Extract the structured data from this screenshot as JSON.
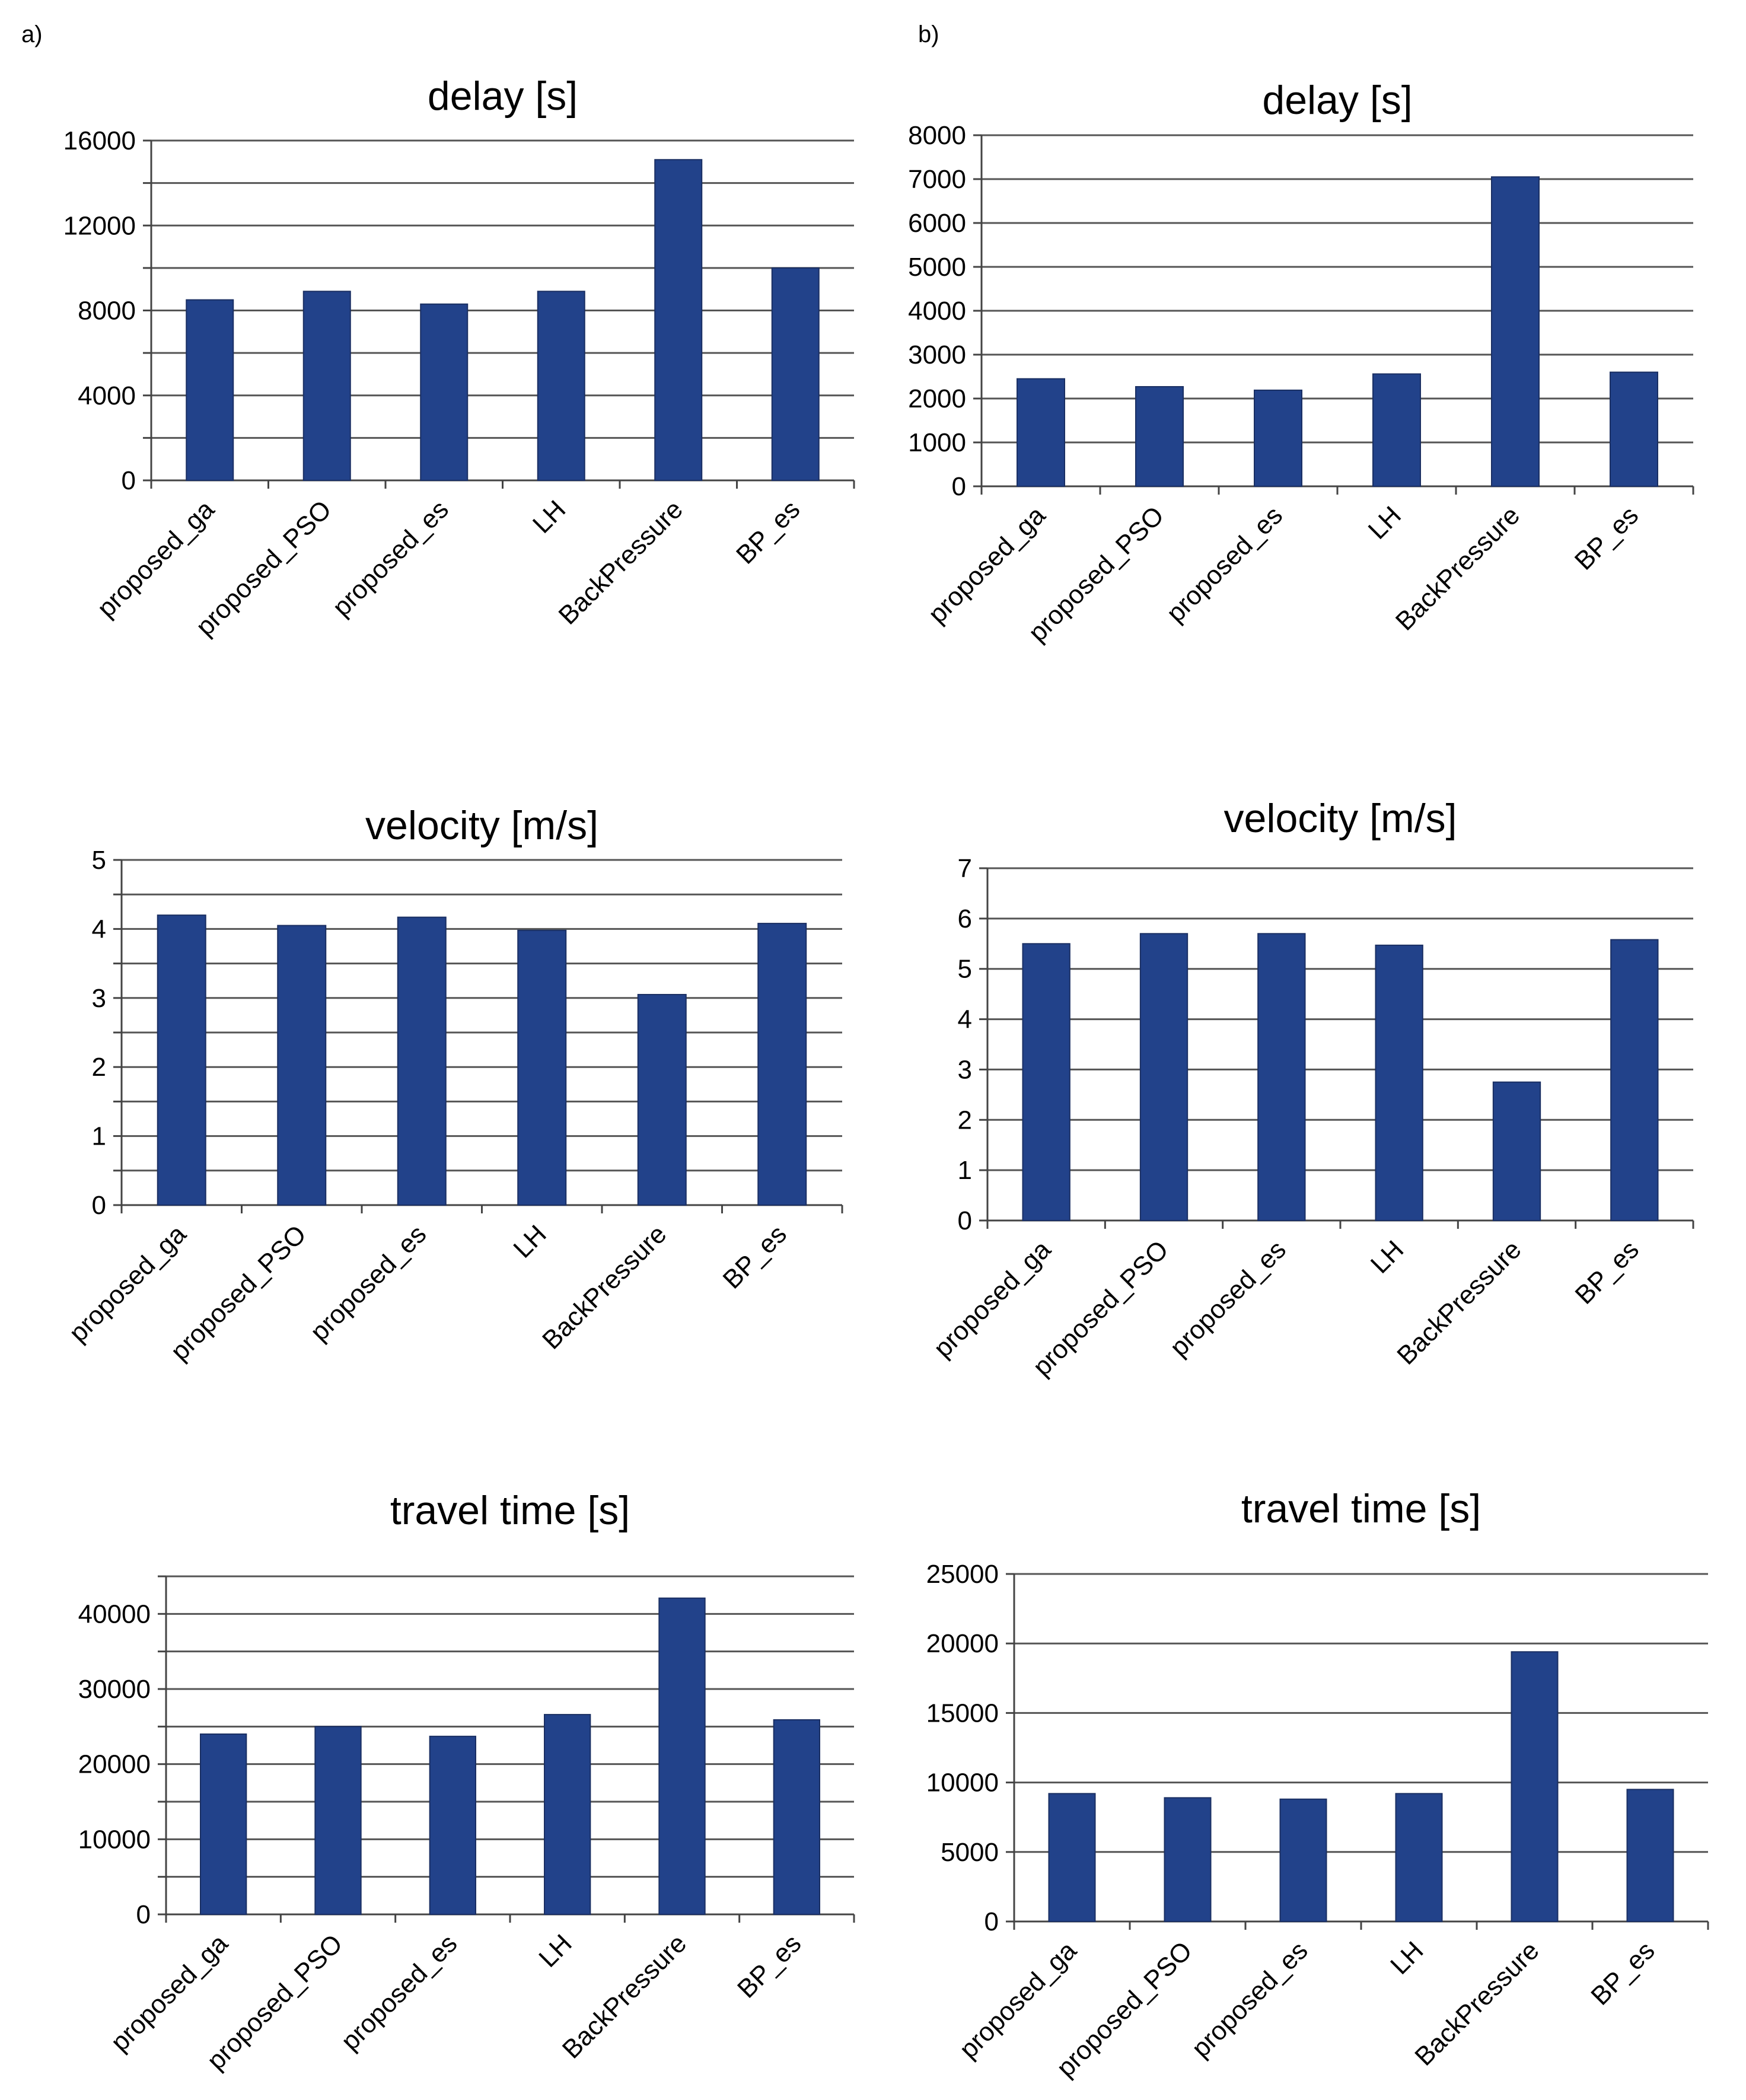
{
  "panels": {
    "a": "a)",
    "b": "b)"
  },
  "colors": {
    "bar": "#22428a",
    "grid": "#555555",
    "axis": "#444444"
  },
  "chart_data": [
    {
      "id": "a-delay",
      "panel": "a",
      "type": "bar",
      "title": "delay [s]",
      "categories": [
        "proposed_ga",
        "proposed_PSO",
        "proposed_es",
        "LH",
        "BackPressure",
        "BP_es"
      ],
      "values": [
        8500,
        8900,
        8300,
        8900,
        15100,
        10000
      ],
      "ylim": [
        0,
        16000
      ],
      "yticks": [
        0,
        4000,
        8000,
        12000,
        16000
      ],
      "ygrid_step": 2000,
      "xlabel": "",
      "ylabel": ""
    },
    {
      "id": "b-delay",
      "panel": "b",
      "type": "bar",
      "title": "delay [s]",
      "categories": [
        "proposed_ga",
        "proposed_PSO",
        "proposed_es",
        "LH",
        "BackPressure",
        "BP_es"
      ],
      "values": [
        2450,
        2270,
        2190,
        2560,
        7050,
        2600
      ],
      "ylim": [
        0,
        8000
      ],
      "yticks": [
        0,
        1000,
        2000,
        3000,
        4000,
        5000,
        6000,
        7000,
        8000
      ],
      "ygrid_step": 1000,
      "xlabel": "",
      "ylabel": ""
    },
    {
      "id": "a-velocity",
      "panel": "a",
      "type": "bar",
      "title": "velocity [m/s]",
      "categories": [
        "proposed_ga",
        "proposed_PSO",
        "proposed_es",
        "LH",
        "BackPressure",
        "BP_es"
      ],
      "values": [
        4.2,
        4.05,
        4.17,
        3.98,
        3.05,
        4.08
      ],
      "ylim": [
        0,
        5
      ],
      "yticks": [
        0,
        1,
        2,
        3,
        4,
        5
      ],
      "ygrid_step": 0.5,
      "xlabel": "",
      "ylabel": ""
    },
    {
      "id": "b-velocity",
      "panel": "b",
      "type": "bar",
      "title": "velocity [m/s]",
      "categories": [
        "proposed_ga",
        "proposed_PSO",
        "proposed_es",
        "LH",
        "BackPressure",
        "BP_es"
      ],
      "values": [
        5.5,
        5.7,
        5.7,
        5.47,
        2.75,
        5.58
      ],
      "ylim": [
        0,
        7
      ],
      "yticks": [
        0,
        1,
        2,
        3,
        4,
        5,
        6,
        7
      ],
      "ygrid_step": 1,
      "xlabel": "",
      "ylabel": ""
    },
    {
      "id": "a-travel",
      "panel": "a",
      "type": "bar",
      "title": "travel time [s]",
      "categories": [
        "proposed_ga",
        "proposed_PSO",
        "proposed_es",
        "LH",
        "BackPressure",
        "BP_es"
      ],
      "values": [
        24000,
        25000,
        23700,
        26600,
        42100,
        25900
      ],
      "ylim": [
        0,
        45000
      ],
      "yticks": [
        0,
        10000,
        20000,
        30000,
        40000
      ],
      "ygrid_step": 5000,
      "xlabel": "",
      "ylabel": ""
    },
    {
      "id": "b-travel",
      "panel": "b",
      "type": "bar",
      "title": "travel time [s]",
      "categories": [
        "proposed_ga",
        "proposed_PSO",
        "proposed_es",
        "LH",
        "BackPressure",
        "BP_es"
      ],
      "values": [
        9200,
        8900,
        8800,
        9200,
        19400,
        9500
      ],
      "ylim": [
        0,
        25000
      ],
      "yticks": [
        0,
        5000,
        10000,
        15000,
        20000,
        25000
      ],
      "ygrid_step": 5000,
      "xlabel": "",
      "ylabel": ""
    }
  ]
}
